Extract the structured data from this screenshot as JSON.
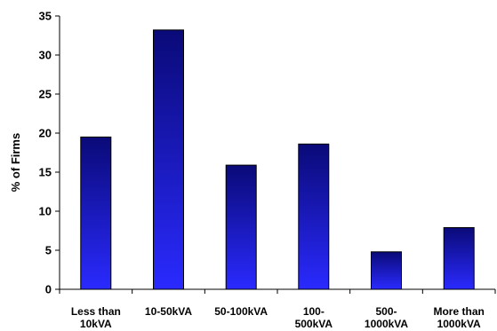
{
  "chart_data": {
    "type": "bar",
    "title": "",
    "xlabel": "",
    "ylabel": "% of Firms",
    "ylim": [
      0,
      35
    ],
    "yticks": [
      0,
      5,
      10,
      15,
      20,
      25,
      30,
      35
    ],
    "grid": false,
    "legend": "none",
    "categories": [
      [
        "Less than",
        "10kVA"
      ],
      [
        "10-50kVA"
      ],
      [
        "50-100kVA"
      ],
      [
        "100-",
        "500kVA"
      ],
      [
        "500-",
        "1000kVA"
      ],
      [
        "More than",
        "1000kVA"
      ]
    ],
    "values": [
      19.5,
      33.2,
      15.9,
      18.6,
      4.8,
      7.9
    ],
    "colors": {
      "bar_top": "#0a0a78",
      "bar_bottom": "#2a2aff",
      "bar_outline": "#000000",
      "axis": "#000000"
    }
  }
}
